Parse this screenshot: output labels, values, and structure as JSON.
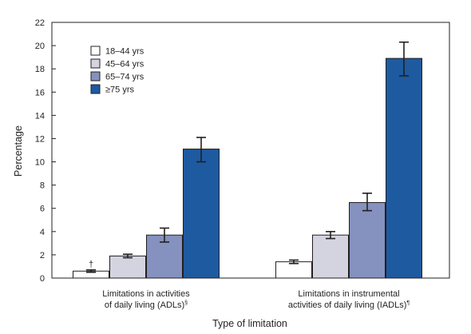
{
  "chart_data": {
    "type": "bar",
    "xlabel": "Type of limitation",
    "ylabel": "Percentage",
    "ylim": [
      0,
      22
    ],
    "yticks": [
      0,
      2,
      4,
      6,
      8,
      10,
      12,
      14,
      16,
      18,
      20,
      22
    ],
    "grid": false,
    "legend_position": "top-left",
    "categories": [
      {
        "line1": "Limitations in activities",
        "line2": "of daily living (ADLs)",
        "mark": "§"
      },
      {
        "line1": "Limitations in instrumental",
        "line2": "activities of daily living (IADLs)",
        "mark": "¶"
      }
    ],
    "series": [
      {
        "name": "18–44 yrs",
        "color": "#ffffff",
        "values": [
          0.6,
          1.4
        ],
        "error_low": [
          0.5,
          1.25
        ],
        "error_high": [
          0.7,
          1.55
        ],
        "annotations": [
          "†",
          ""
        ]
      },
      {
        "name": "45–64 yrs",
        "color": "#d4d3e0",
        "values": [
          1.9,
          3.7
        ],
        "error_low": [
          1.75,
          3.4
        ],
        "error_high": [
          2.05,
          4.0
        ],
        "annotations": [
          "",
          ""
        ]
      },
      {
        "name": "65–74 yrs",
        "color": "#8591bf",
        "values": [
          3.7,
          6.5
        ],
        "error_low": [
          3.1,
          5.8
        ],
        "error_high": [
          4.3,
          7.3
        ],
        "annotations": [
          "",
          ""
        ]
      },
      {
        "name": "≥75 yrs",
        "color": "#1d5aa0",
        "values": [
          11.1,
          18.9
        ],
        "error_low": [
          10.0,
          17.4
        ],
        "error_high": [
          12.1,
          20.3
        ],
        "annotations": [
          "",
          ""
        ]
      }
    ]
  }
}
